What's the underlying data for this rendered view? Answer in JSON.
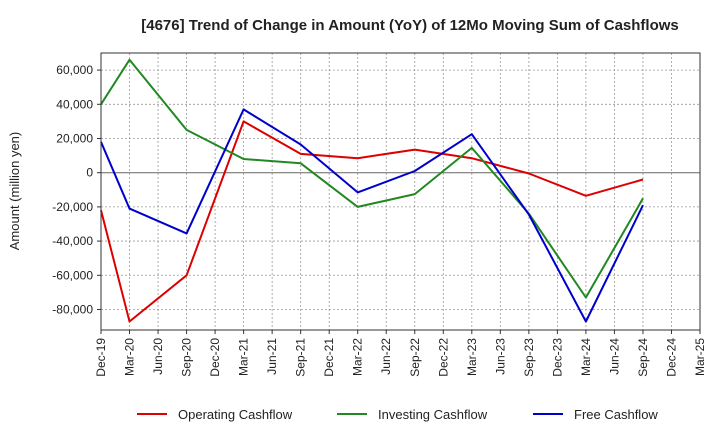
{
  "chart_data": {
    "type": "line",
    "title": "[4676]  Trend of Change in Amount (YoY) of 12Mo Moving Sum of Cashflows",
    "xlabel": "",
    "ylabel": "Amount (million yen)",
    "categories": [
      "Dec-19",
      "Mar-20",
      "Jun-20",
      "Sep-20",
      "Dec-20",
      "Mar-21",
      "Jun-21",
      "Sep-21",
      "Dec-21",
      "Mar-22",
      "Jun-22",
      "Sep-22",
      "Dec-22",
      "Mar-23",
      "Jun-23",
      "Sep-23",
      "Dec-23",
      "Mar-24",
      "Jun-24",
      "Sep-24",
      "Dec-24",
      "Mar-25"
    ],
    "ylim": [
      -92000,
      70000
    ],
    "yticks": [
      60000,
      40000,
      20000,
      0,
      -20000,
      -40000,
      -60000,
      -80000
    ],
    "ytick_labels": [
      "60,000",
      "40,000",
      "20,000",
      "0",
      "-20,000",
      "-40,000",
      "-60,000",
      "-80,000"
    ],
    "grid": true,
    "legend_position": "bottom",
    "series": [
      {
        "name": "Operating Cashflow",
        "color": "#dd0000",
        "values": [
          -22000,
          -87000,
          null,
          -60000,
          null,
          30000,
          null,
          11000,
          null,
          8500,
          null,
          13500,
          null,
          8500,
          null,
          -500,
          null,
          -13500,
          null,
          -4000,
          null,
          null
        ]
      },
      {
        "name": "Investing Cashflow",
        "color": "#228822",
        "values": [
          40000,
          66000,
          null,
          25000,
          null,
          8000,
          null,
          5500,
          null,
          -20000,
          null,
          -12500,
          null,
          14500,
          null,
          -24000,
          null,
          -73000,
          null,
          -15000,
          null,
          null
        ]
      },
      {
        "name": "Free Cashflow",
        "color": "#0000cc",
        "values": [
          18000,
          -21000,
          null,
          -35500,
          null,
          37000,
          null,
          16500,
          null,
          -11500,
          null,
          1000,
          null,
          22500,
          null,
          -24500,
          null,
          -87000,
          null,
          -19000,
          null,
          null
        ]
      }
    ]
  }
}
